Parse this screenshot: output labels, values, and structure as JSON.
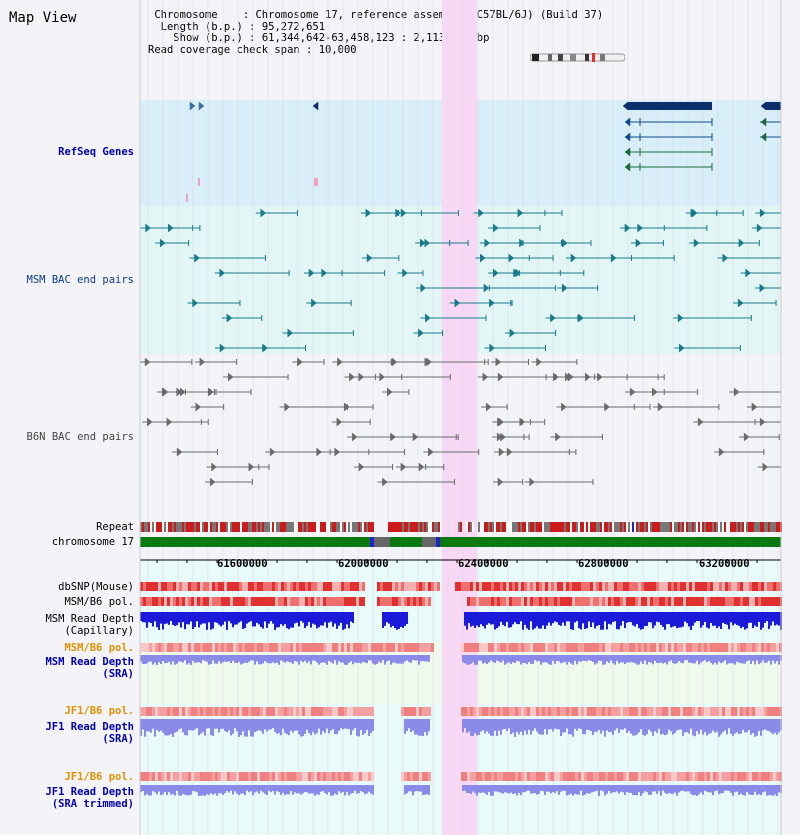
{
  "view_title": "Map View",
  "info": {
    "chromosome_label": "Chromosome",
    "chromosome_value": "Chromosome 17, reference assembly (C57BL/6J) (Build 37)",
    "length_label": "Length (b.p.)",
    "length_value": "95,272,651",
    "show_label": "Show (b.p.)",
    "show_value": "61,344,642-63,458,123 : 2,113,482 bp",
    "span_label": "Read coverage check span",
    "span_value": "10,000"
  },
  "tracks": {
    "refseq": "RefSeq Genes",
    "msm_bac": "MSM BAC end pairs",
    "b6n_bac": "B6N BAC end pairs",
    "repeat": "Repeat",
    "chromosome": "chromosome 17",
    "dbsnp": "dbSNP(Mouse)",
    "msm_b6_pol": "MSM/B6 pol.",
    "msm_depth_cap_1": "MSM Read Depth",
    "msm_depth_cap_2": "(Capillary)",
    "msm_b6_pol_sra": "MSM/B6 pol.",
    "msm_depth_sra_1": "MSM Read Depth",
    "msm_depth_sra_2": "(SRA)",
    "jf1_b6_pol": "JF1/B6 pol.",
    "jf1_depth_sra_1": "JF1 Read Depth",
    "jf1_depth_sra_2": "(SRA)",
    "jf1_b6_pol_trim": "JF1/B6 pol.",
    "jf1_depth_trim_1": "JF1 Read Depth",
    "jf1_depth_trim_2": "(SRA trimmed)"
  },
  "axis_ticks": [
    "61600000",
    "62000000",
    "62400000",
    "62800000",
    "63200000"
  ],
  "colors": {
    "refseq_bg": "#d8eef8",
    "msm_bg": "#e2f6f6",
    "b6n_bg": "#f3f4f8",
    "highlight": "#f8d8f4",
    "gene": "#0b2f6a",
    "msm_pair": "#1a7a8a",
    "b6n_pair": "#6a6a6a",
    "chrom_green": "#0a7a10",
    "repeat_red": "#cc1b1b",
    "depth_blue": "#1a1ad8",
    "depth_light": "#8a8ae8"
  }
}
